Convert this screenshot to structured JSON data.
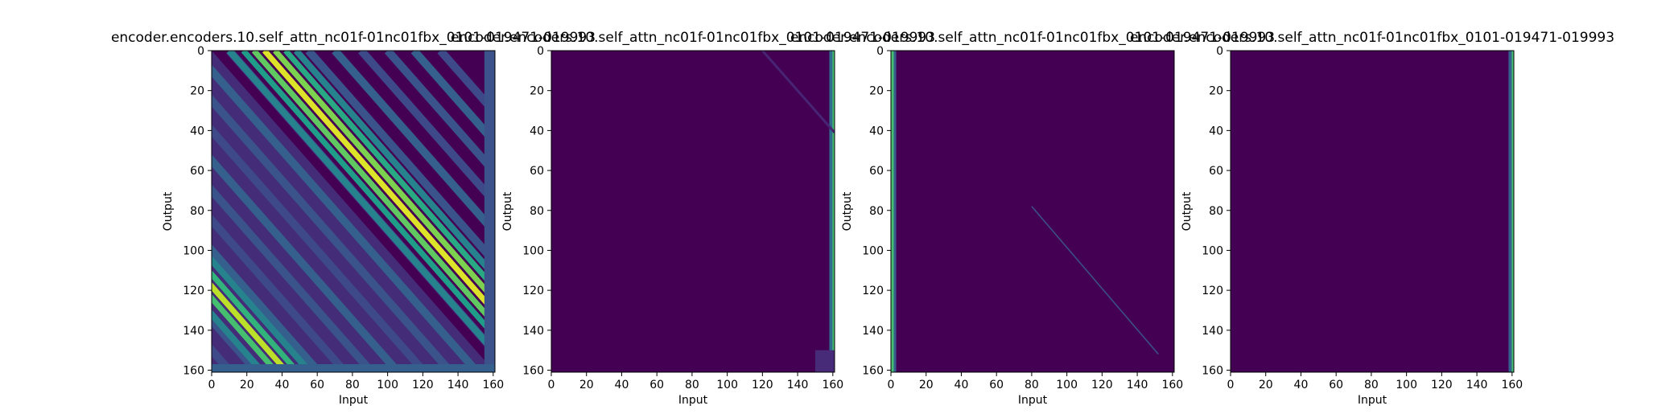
{
  "chart_data": [
    {
      "type": "heatmap",
      "title": "encoder.encoders.10.self_attn_nc01f-01nc01fbx_0101-019471-019993",
      "xlabel": "Input",
      "ylabel": "Output",
      "xlim": [
        0,
        161
      ],
      "ylim": [
        161,
        0
      ],
      "xticks": [
        0,
        20,
        40,
        60,
        80,
        100,
        120,
        140,
        160
      ],
      "yticks": [
        0,
        20,
        40,
        60,
        80,
        100,
        120,
        140,
        160
      ],
      "colormap": "viridis",
      "pattern": "banded-diagonal",
      "description_values": {
        "strong_band_offset": 30,
        "lower_band_offset": -120
      }
    },
    {
      "type": "heatmap",
      "title": "encoder.encoders.10.self_attn_nc01f-01nc01fbx_0101-019471-019993",
      "xlabel": "Input",
      "ylabel": "Output",
      "xlim": [
        0,
        161
      ],
      "ylim": [
        161,
        0
      ],
      "xticks": [
        0,
        20,
        40,
        60,
        80,
        100,
        120,
        140,
        160
      ],
      "yticks": [
        0,
        20,
        40,
        60,
        80,
        100,
        120,
        140,
        160
      ],
      "colormap": "viridis",
      "pattern": "last-column"
    },
    {
      "type": "heatmap",
      "title": "encoder.encoders.10.self_attn_nc01f-01nc01fbx_0101-019471-019993",
      "xlabel": "Input",
      "ylabel": "Output",
      "xlim": [
        0,
        161
      ],
      "ylim": [
        161,
        0
      ],
      "xticks": [
        0,
        20,
        40,
        60,
        80,
        100,
        120,
        140,
        160
      ],
      "yticks": [
        0,
        20,
        40,
        60,
        80,
        100,
        120,
        140,
        160
      ],
      "colormap": "viridis",
      "pattern": "first-column"
    },
    {
      "type": "heatmap",
      "title": "encoder.encoders.10.self_attn_nc01f-01nc01fbx_0101-019471-019993",
      "xlabel": "Input",
      "ylabel": "Output",
      "xlim": [
        0,
        161
      ],
      "ylim": [
        161,
        0
      ],
      "xticks": [
        0,
        20,
        40,
        60,
        80,
        100,
        120,
        140,
        160
      ],
      "yticks": [
        0,
        20,
        40,
        60,
        80,
        100,
        120,
        140,
        160
      ],
      "colormap": "viridis",
      "pattern": "last-column-faint"
    }
  ]
}
